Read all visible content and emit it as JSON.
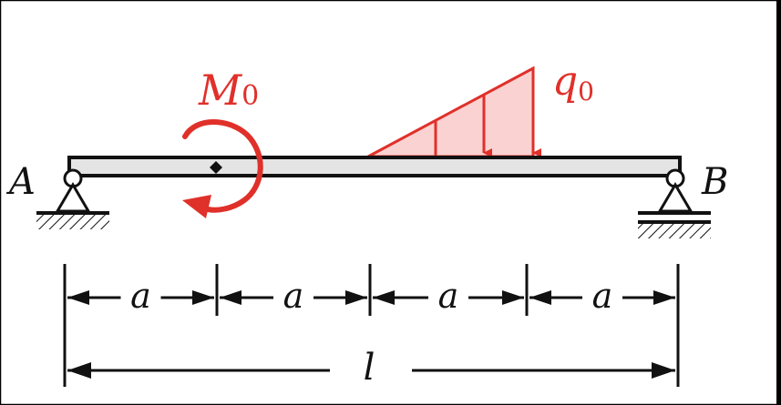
{
  "labels": {
    "support_a": "A",
    "support_b": "B",
    "moment_symbol": "M",
    "moment_subscript": "0",
    "load_symbol": "q",
    "load_subscript": "0",
    "segments": [
      "a",
      "a",
      "a",
      "a"
    ],
    "total_length": "l"
  },
  "colors": {
    "load": "#e0302a",
    "load_fill": "#fbd2d2",
    "beam_fill": "#e4e4e4",
    "ink": "#111111",
    "frame": "#000000"
  },
  "icons": {
    "moment": "counterclockwise-moment-arrow-icon",
    "pin": "pin-support-icon",
    "roller": "roller-support-icon"
  }
}
